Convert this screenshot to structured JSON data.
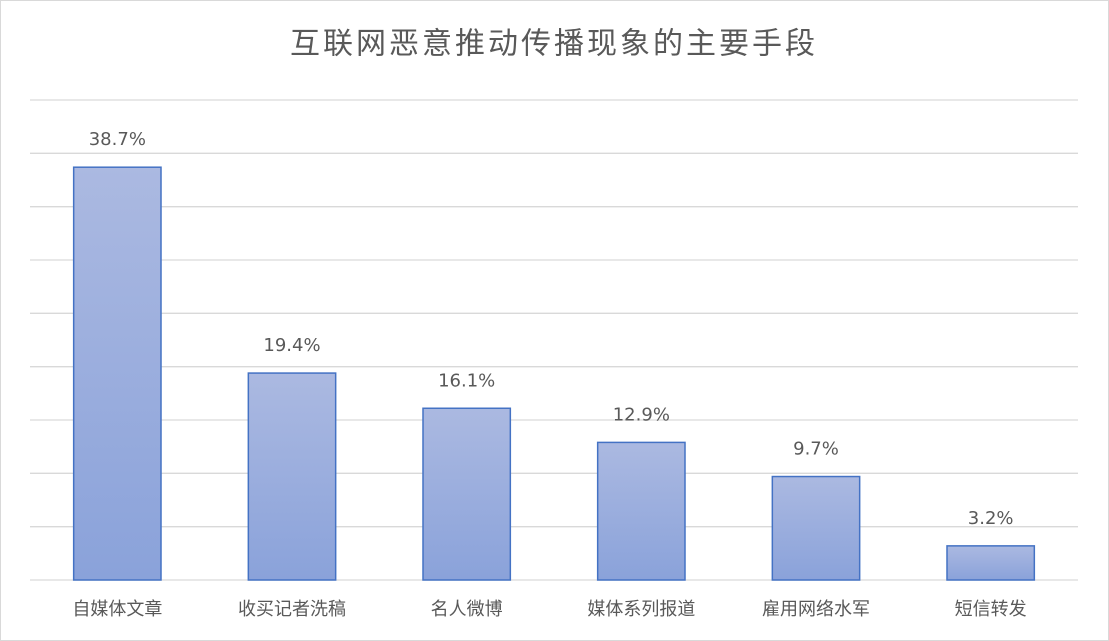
{
  "chart_data": {
    "type": "bar",
    "title": "互联网恶意推动传播现象的主要手段",
    "categories": [
      "自媒体文章",
      "收买记者洗稿",
      "名人微博",
      "媒体系列报道",
      "雇用网络水军",
      "短信转发"
    ],
    "values": [
      38.7,
      19.4,
      16.1,
      12.9,
      9.7,
      3.2
    ],
    "value_labels": [
      "38.7%",
      "19.4%",
      "16.1%",
      "12.9%",
      "9.7%",
      "3.2%"
    ],
    "color": "#4472c4",
    "ylim": [
      0,
      45
    ],
    "yticks": [
      0,
      5,
      10,
      15,
      20,
      25,
      30,
      35,
      40,
      45
    ],
    "grid": true
  }
}
